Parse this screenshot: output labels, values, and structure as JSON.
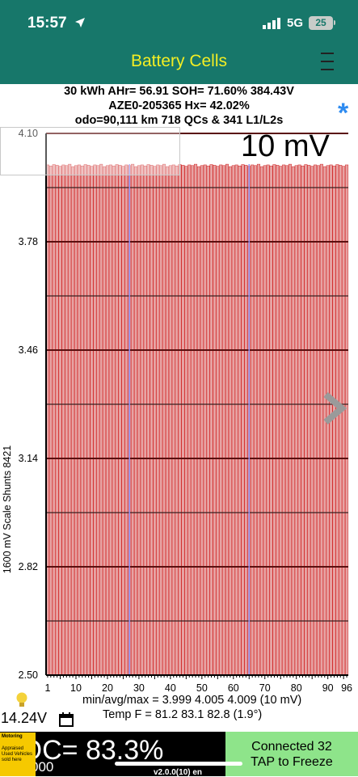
{
  "status": {
    "time": "15:57",
    "network": "5G",
    "battery": "25"
  },
  "header": {
    "title": "Battery Cells"
  },
  "info": {
    "line1": "30 kWh  AHr= 56.91  SOH= 71.60%   384.43V",
    "line2": "AZE0-205365   Hx= 42.02%",
    "line3": "odo=90,111 km 718 QCs & 341 L1/L2s"
  },
  "scale_label": "10 mV",
  "chart_data": {
    "type": "bar",
    "ylabel": "1600 mV Scale   Shunts 8421",
    "ylim": [
      2.5,
      4.1
    ],
    "y_ticks": [
      "4.10",
      "3.78",
      "3.46",
      "3.14",
      "2.82",
      "2.50"
    ],
    "x_ticks": [
      "1",
      "10",
      "20",
      "30",
      "40",
      "50",
      "60",
      "70",
      "80",
      "90",
      "96"
    ],
    "cell_count": 96,
    "cell_voltage_min": 3.999,
    "cell_voltage_avg": 4.005,
    "cell_voltage_max": 4.009,
    "marker_cells": [
      27,
      65
    ],
    "colors": {
      "bar": "#e7a3a3",
      "bar_border": "#d02020",
      "marker": "#8f8ff2"
    }
  },
  "stats": {
    "minmax": "min/avg/max = 3.999 4.005 4.009  (10 mV)",
    "temp": "Temp F = 81.2  83.1  82.8  (1.9°)",
    "aux_voltage": "14.24V"
  },
  "footer": {
    "soc": "SOC= 83.3%",
    "odo_fragment": "000",
    "connected": "Connected 32",
    "tap": "TAP to Freeze",
    "version": "v2.0.0(10) en",
    "dealer_badge": [
      "Motoring",
      "Appraised",
      "Used Vehicles",
      "sold here"
    ]
  }
}
